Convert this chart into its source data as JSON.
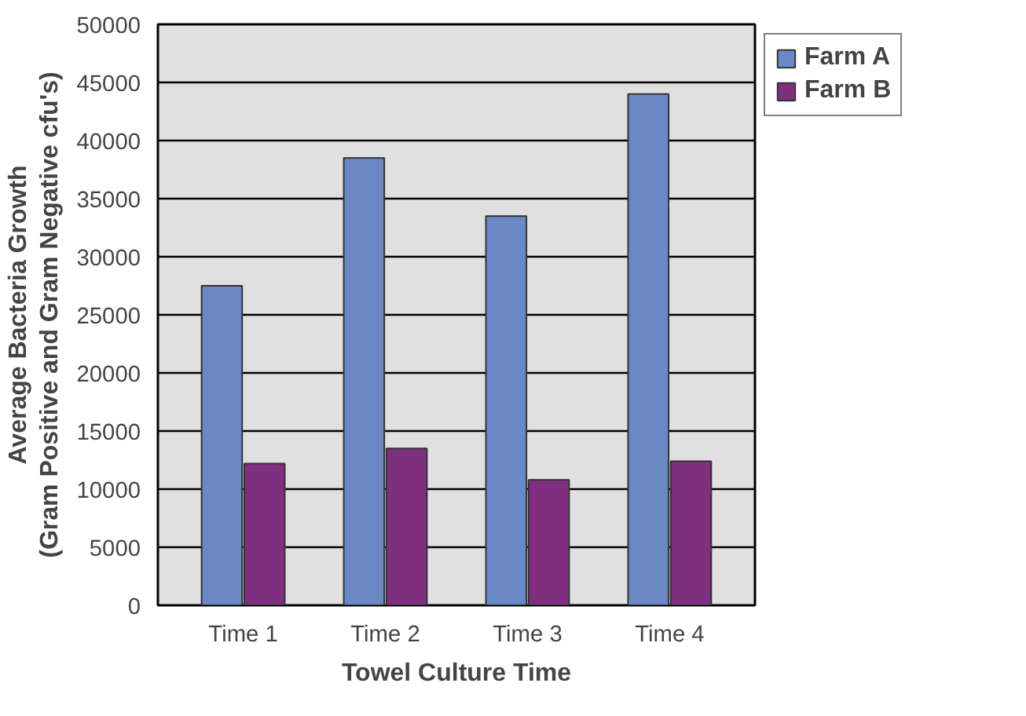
{
  "chart_data": {
    "type": "bar",
    "xlabel": "Towel Culture Time",
    "ylabel": "Average Bacteria Growth\n(Gram Positive and Gram Negative cfu's)",
    "categories": [
      "Time 1",
      "Time 2",
      "Time 3",
      "Time 4"
    ],
    "series": [
      {
        "name": "Farm A",
        "color": "#6a89c4",
        "values": [
          27500,
          38500,
          33500,
          44000
        ]
      },
      {
        "name": "Farm B",
        "color": "#7f2e80",
        "values": [
          12200,
          13500,
          10800,
          12400
        ]
      }
    ],
    "ylim": [
      0,
      50000
    ],
    "yticks": [
      0,
      5000,
      10000,
      15000,
      20000,
      25000,
      30000,
      35000,
      40000,
      45000,
      50000
    ],
    "grid": "y",
    "legend": "right"
  }
}
